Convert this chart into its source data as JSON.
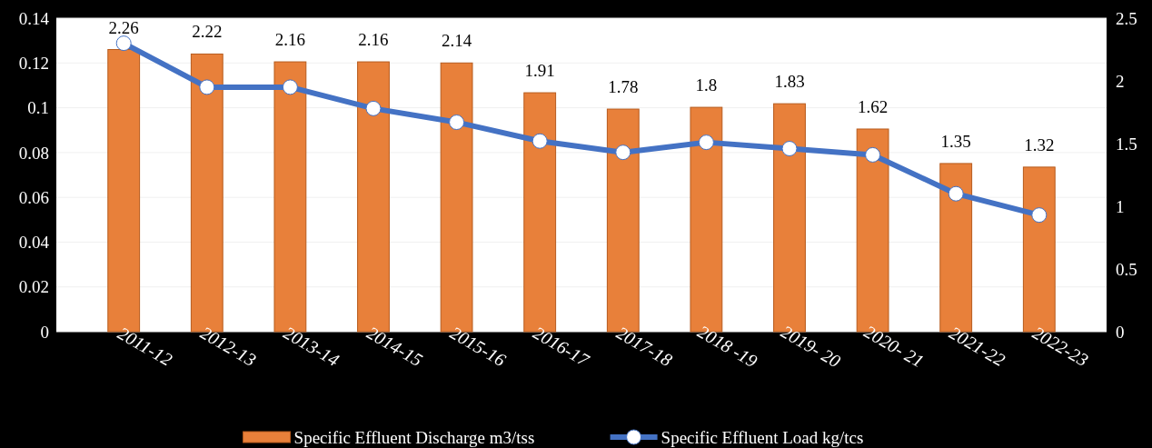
{
  "chart_data": {
    "type": "bar",
    "categories": [
      "2011-12",
      "2012-13",
      "2013-14",
      "2014-15",
      "2015-16",
      "2016-17",
      "2017-18",
      "2018 -19",
      "2019- 20",
      "2020- 21",
      "2021-22",
      "2022-23"
    ],
    "series": [
      {
        "name": "Specific Effluent Discharge  m3/tss",
        "color": "#e8803a",
        "values": [
          0.126,
          0.124,
          0.1205,
          0.1205,
          0.12,
          0.1067,
          0.0994,
          0.1002,
          0.1018,
          0.0905,
          0.0751,
          0.0735
        ]
      },
      {
        "name": "Specific Effluent Load kg/tcs",
        "type": "line",
        "axis": "y2",
        "color": "#4472c4",
        "marker": "circle",
        "values": [
          2.3,
          1.95,
          1.95,
          1.78,
          1.67,
          1.52,
          1.43,
          1.51,
          1.46,
          1.41,
          1.1,
          0.93
        ]
      }
    ],
    "ylim": [
      0,
      0.14
    ],
    "yticks": [
      0,
      0.02,
      0.04,
      0.06,
      0.08,
      0.1,
      0.12,
      0.14
    ],
    "y2lim": [
      0,
      2.5
    ],
    "y2ticks": [
      0,
      0.5,
      1,
      1.5,
      2,
      2.5
    ],
    "annotations": [
      {
        "text": "2.26",
        "x": "2011-12",
        "y": 0.126
      },
      {
        "text": "2.22",
        "x": "2012-13",
        "y": 0.124
      },
      {
        "text": "2.16",
        "x": "2013-14",
        "y": 0.1205
      },
      {
        "text": "2.16",
        "x": "2014-15",
        "y": 0.1205
      },
      {
        "text": "2.14",
        "x": "2015-16",
        "y": 0.12
      },
      {
        "text": "1.91",
        "x": "2016-17",
        "y": 0.1067
      },
      {
        "text": "1.78",
        "x": "2017-18",
        "y": 0.0994
      },
      {
        "text": "1.8",
        "x": "2018 -19",
        "y": 0.1002
      },
      {
        "text": "1.83",
        "x": "2019- 20",
        "y": 0.1018
      },
      {
        "text": "1.62",
        "x": "2020- 21",
        "y": 0.0905
      },
      {
        "text": "1.35",
        "x": "2021-22",
        "y": 0.0751
      },
      {
        "text": "1.32",
        "x": "2022-23",
        "y": 0.0735
      }
    ],
    "grid": "y",
    "legend": "bottom"
  }
}
